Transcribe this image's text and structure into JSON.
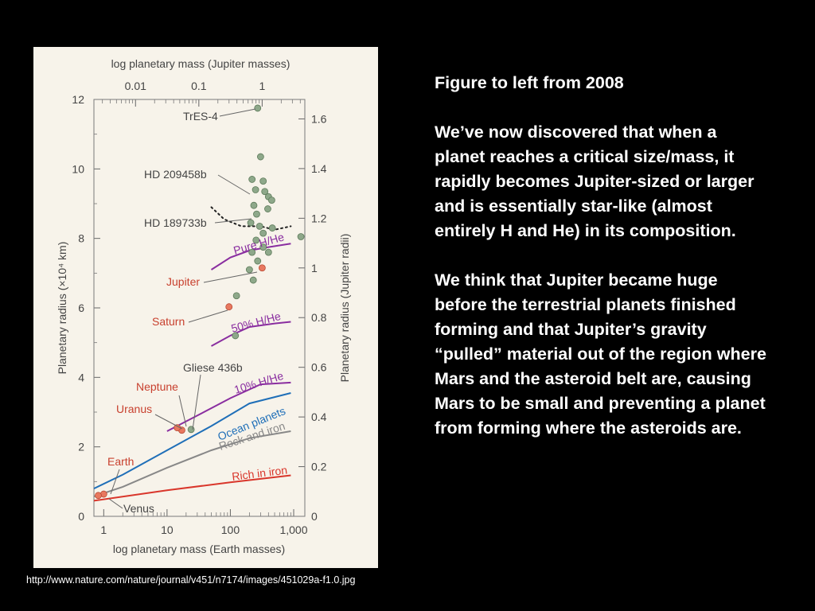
{
  "slide": {
    "heading": "Figure to left from 2008",
    "paragraph_1": "We’ve now discovered that when a planet reaches a critical size/mass, it rapidly becomes Jupiter-sized or larger and is essentially star-like (almost entirely H and He) in its composition.",
    "paragraph_2": "We think that Jupiter became huge before the terrestrial planets finished forming and that Jupiter’s gravity “pulled” material out of the region where Mars and the asteroid belt are, causing Mars to be small and preventing a planet from forming where the asteroids are.",
    "source_url": "http://www.nature.com/nature/journal/v451/n7174/images/451029a-f1.0.jpg"
  },
  "chart_data": {
    "type": "scatter",
    "xlabel": "log planetary mass (Earth masses)",
    "xlabel_top": "log planetary mass (Jupiter masses)",
    "ylabel": "Planetary radius (×10⁴ km)",
    "ylabel_right": "Planetary radius (Jupiter radii)",
    "x_scale": "log",
    "xlim": [
      0.7,
      1500
    ],
    "ylim": [
      0,
      12
    ],
    "x_ticks": [
      {
        "v": 1,
        "label": "1"
      },
      {
        "v": 10,
        "label": "10"
      },
      {
        "v": 100,
        "label": "100"
      },
      {
        "v": 1000,
        "label": "1,000"
      }
    ],
    "x_ticks_top": [
      {
        "v": 3.178,
        "label": "0.01"
      },
      {
        "v": 31.78,
        "label": "0.1"
      },
      {
        "v": 317.8,
        "label": "1"
      }
    ],
    "y_ticks": [
      0,
      2,
      4,
      6,
      8,
      10,
      12
    ],
    "y_ticks_right": [
      {
        "v": 0,
        "label": "0"
      },
      {
        "v": 1.43,
        "label": "0.2"
      },
      {
        "v": 2.86,
        "label": "0.4"
      },
      {
        "v": 4.29,
        "label": "0.6"
      },
      {
        "v": 5.72,
        "label": "0.8"
      },
      {
        "v": 7.15,
        "label": "1"
      },
      {
        "v": 8.58,
        "label": "1.2"
      },
      {
        "v": 10.01,
        "label": "1.4"
      },
      {
        "v": 11.44,
        "label": "1.6"
      }
    ],
    "colors": {
      "exoplanet": "#8ea88a",
      "solar_planet": "#e8785f",
      "h_he": "#8a2ea0",
      "ocean": "#1f6fb8",
      "rock": "#888888",
      "iron": "#d9362b",
      "dotted": "#222222"
    },
    "curves": [
      {
        "name": "Pure H/He",
        "color": "h_he",
        "points": [
          [
            50,
            7.1
          ],
          [
            100,
            7.45
          ],
          [
            200,
            7.65
          ],
          [
            400,
            7.75
          ],
          [
            900,
            7.85
          ]
        ]
      },
      {
        "name": "50% H/He",
        "color": "h_he",
        "points": [
          [
            50,
            4.9
          ],
          [
            100,
            5.2
          ],
          [
            200,
            5.45
          ],
          [
            500,
            5.55
          ],
          [
            900,
            5.6
          ]
        ]
      },
      {
        "name": "10% H/He",
        "color": "h_he",
        "points": [
          [
            10,
            2.45
          ],
          [
            30,
            2.9
          ],
          [
            100,
            3.4
          ],
          [
            300,
            3.8
          ],
          [
            900,
            3.85
          ]
        ]
      },
      {
        "name": "Ocean planets",
        "color": "ocean",
        "points": [
          [
            0.7,
            0.8
          ],
          [
            2,
            1.2
          ],
          [
            10,
            1.9
          ],
          [
            50,
            2.6
          ],
          [
            200,
            3.25
          ],
          [
            900,
            3.55
          ]
        ]
      },
      {
        "name": "Rock and iron",
        "color": "rock",
        "points": [
          [
            0.7,
            0.57
          ],
          [
            2,
            0.85
          ],
          [
            10,
            1.4
          ],
          [
            50,
            1.9
          ],
          [
            200,
            2.25
          ],
          [
            900,
            2.45
          ]
        ]
      },
      {
        "name": "Rich in iron",
        "color": "iron",
        "points": [
          [
            0.7,
            0.45
          ],
          [
            10,
            0.75
          ],
          [
            100,
            0.98
          ],
          [
            900,
            1.18
          ]
        ]
      }
    ],
    "dotted_curve": {
      "color": "dotted",
      "points": [
        [
          50,
          8.9
        ],
        [
          80,
          8.55
        ],
        [
          150,
          8.35
        ],
        [
          300,
          8.35
        ],
        [
          500,
          8.25
        ],
        [
          900,
          8.35
        ]
      ]
    },
    "series": [
      {
        "kind": "exoplanets",
        "color": "exoplanet",
        "points": [
          [
            270,
            11.75
          ],
          [
            300,
            10.35
          ],
          [
            220,
            9.7
          ],
          [
            250,
            9.4
          ],
          [
            330,
            9.65
          ],
          [
            350,
            9.35
          ],
          [
            400,
            9.2
          ],
          [
            450,
            9.1
          ],
          [
            235,
            8.95
          ],
          [
            260,
            8.7
          ],
          [
            390,
            8.85
          ],
          [
            210,
            8.45
          ],
          [
            290,
            8.35
          ],
          [
            330,
            8.15
          ],
          [
            460,
            8.3
          ],
          [
            1300,
            8.05
          ],
          [
            255,
            7.95
          ],
          [
            330,
            7.75
          ],
          [
            220,
            7.6
          ],
          [
            400,
            7.6
          ],
          [
            270,
            7.35
          ],
          [
            200,
            7.1
          ],
          [
            230,
            6.8
          ],
          [
            125,
            6.35
          ],
          [
            120,
            5.2
          ],
          [
            24,
            2.5
          ]
        ]
      },
      {
        "kind": "solar_system",
        "color": "solar_planet",
        "points": [
          [
            317.8,
            7.15
          ],
          [
            95.2,
            6.03
          ],
          [
            17.1,
            2.48
          ],
          [
            14.5,
            2.55
          ],
          [
            1,
            0.64
          ],
          [
            0.82,
            0.6
          ]
        ]
      }
    ],
    "labels": {
      "tres4": "TrES-4",
      "hd209458b": "HD 209458b",
      "hd189733b": "HD 189733b",
      "jupiter": "Jupiter",
      "saturn": "Saturn",
      "neptune": "Neptune",
      "uranus": "Uranus",
      "gliese436b": "Gliese 436b",
      "earth": "Earth",
      "venus": "Venus"
    }
  }
}
